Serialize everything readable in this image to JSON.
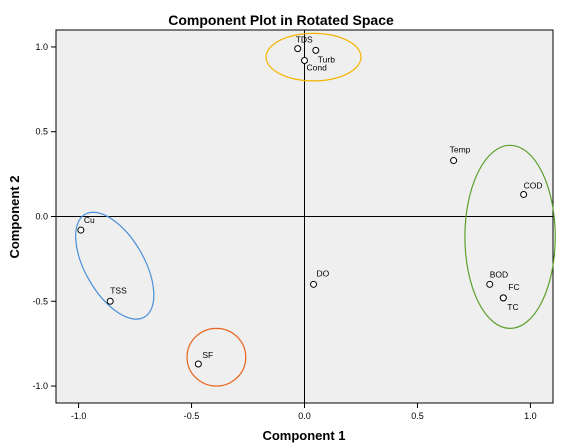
{
  "chart_data": {
    "type": "scatter",
    "title": "Component Plot in Rotated Space",
    "xlabel": "Component 1",
    "ylabel": "Component 2",
    "xlim": [
      -1.1,
      1.1
    ],
    "ylim": [
      -1.1,
      1.1
    ],
    "x_ticks": [
      -1.0,
      -0.5,
      0.0,
      0.5,
      1.0
    ],
    "x_tick_labels": [
      "-1.0",
      "-0.5",
      "0.0",
      "0.5",
      "1.0"
    ],
    "y_ticks": [
      1.0,
      0.5,
      0.0,
      -0.5,
      -1.0
    ],
    "y_tick_labels": [
      "1.0",
      "0.5",
      "0.0",
      "-0.5",
      "-1.0"
    ],
    "points": [
      {
        "label": "TDS",
        "x": -0.03,
        "y": 0.99
      },
      {
        "label": "Turb",
        "x": 0.05,
        "y": 0.98
      },
      {
        "label": "Cond",
        "x": 0.0,
        "y": 0.92
      },
      {
        "label": "Temp",
        "x": 0.66,
        "y": 0.33
      },
      {
        "label": "COD",
        "x": 0.97,
        "y": 0.13
      },
      {
        "label": "Cu",
        "x": -0.99,
        "y": -0.08
      },
      {
        "label": "TSS",
        "x": -0.86,
        "y": -0.5
      },
      {
        "label": "DO",
        "x": 0.04,
        "y": -0.4
      },
      {
        "label": "BOD",
        "x": 0.82,
        "y": -0.4
      },
      {
        "label": "FC",
        "x": 0.88,
        "y": -0.48
      },
      {
        "label": "TC",
        "x": 0.88,
        "y": -0.48
      },
      {
        "label": "SF",
        "x": -0.47,
        "y": -0.87
      }
    ],
    "annotations": [
      {
        "shape": "ellipse",
        "color": "#f5b400",
        "cx": 0.04,
        "cy": 0.94,
        "rx": 0.21,
        "ry": 0.14,
        "angle": 0
      },
      {
        "shape": "ellipse",
        "color": "#4a90d9",
        "cx": -0.84,
        "cy": -0.29,
        "rx": 0.13,
        "ry": 0.35,
        "angle": -30
      },
      {
        "shape": "ellipse",
        "color": "#e8641b",
        "cx": -0.39,
        "cy": -0.83,
        "rx": 0.13,
        "ry": 0.17,
        "angle": 0
      },
      {
        "shape": "ellipse",
        "color": "#5aa02c",
        "cx": 0.91,
        "cy": -0.12,
        "rx": 0.2,
        "ry": 0.54,
        "angle": 0
      }
    ],
    "plot_background": "#efefef",
    "grid": false
  }
}
